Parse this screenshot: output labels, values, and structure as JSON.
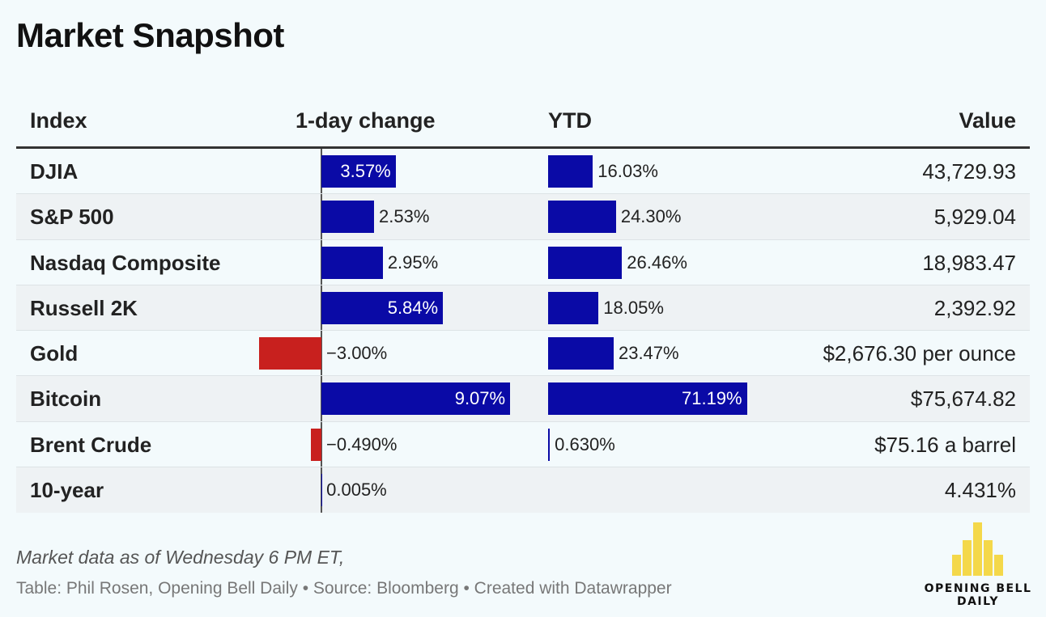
{
  "title": "Market Snapshot",
  "columns": {
    "index": "Index",
    "day": "1-day change",
    "ytd": "YTD",
    "value": "Value"
  },
  "colors": {
    "positive": "#0a0aa6",
    "negative": "#c8201e",
    "background": "#f3fafc"
  },
  "chart_data": {
    "type": "table",
    "title": "Market Snapshot",
    "columns": [
      "Index",
      "1-day change",
      "YTD",
      "Value"
    ],
    "rows": [
      {
        "index": "DJIA",
        "day": 3.57,
        "day_label": "3.57%",
        "ytd": 16.03,
        "ytd_label": "16.03%",
        "value": "43,729.93"
      },
      {
        "index": "S&P 500",
        "day": 2.53,
        "day_label": "2.53%",
        "ytd": 24.3,
        "ytd_label": "24.30%",
        "value": "5,929.04"
      },
      {
        "index": "Nasdaq Composite",
        "day": 2.95,
        "day_label": "2.95%",
        "ytd": 26.46,
        "ytd_label": "26.46%",
        "value": "18,983.47"
      },
      {
        "index": "Russell 2K",
        "day": 5.84,
        "day_label": "5.84%",
        "ytd": 18.05,
        "ytd_label": "18.05%",
        "value": "2,392.92"
      },
      {
        "index": "Gold",
        "day": -3.0,
        "day_label": "−3.00%",
        "ytd": 23.47,
        "ytd_label": "23.47%",
        "value": "$2,676.30 per ounce"
      },
      {
        "index": "Bitcoin",
        "day": 9.07,
        "day_label": "9.07%",
        "ytd": 71.19,
        "ytd_label": "71.19%",
        "value": "$75,674.82"
      },
      {
        "index": "Brent Crude",
        "day": -0.49,
        "day_label": "−0.490%",
        "ytd": 0.63,
        "ytd_label": "0.630%",
        "value": "$75.16 a barrel"
      },
      {
        "index": "10-year",
        "day": 0.005,
        "day_label": "0.005%",
        "ytd": null,
        "ytd_label": "",
        "value": "4.431%"
      }
    ]
  },
  "footer": {
    "note": "Market data as of Wednesday 6 PM ET,",
    "source": "Table: Phil Rosen, Opening Bell Daily • Source: Bloomberg • Created with Datawrapper"
  },
  "logo": {
    "line1": "OPENING BELL",
    "line2": "DAILY"
  }
}
